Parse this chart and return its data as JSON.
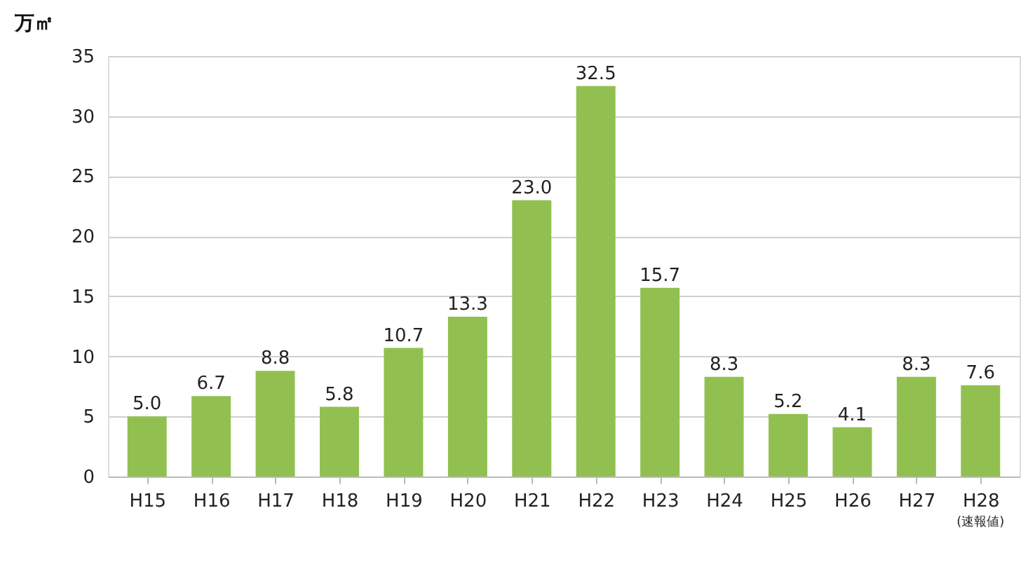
{
  "chart_data": {
    "type": "bar",
    "ylabel": "万㎡",
    "categories": [
      "H15",
      "H16",
      "H17",
      "H18",
      "H19",
      "H20",
      "H21",
      "H22",
      "H23",
      "H24",
      "H25",
      "H26",
      "H27",
      "H28"
    ],
    "values": [
      5.0,
      6.7,
      8.8,
      5.8,
      10.7,
      13.3,
      23.0,
      32.5,
      15.7,
      8.3,
      5.2,
      4.1,
      8.3,
      7.6
    ],
    "value_labels": [
      "5.0",
      "6.7",
      "8.8",
      "5.8",
      "10.7",
      "13.3",
      "23.0",
      "32.5",
      "15.7",
      "8.3",
      "5.2",
      "4.1",
      "8.3",
      "7.6"
    ],
    "color": "#92c050",
    "ylim": [
      0,
      35
    ],
    "yticks": [
      0,
      5,
      10,
      15,
      20,
      25,
      30,
      35
    ],
    "grid": "y",
    "annotations": [
      "(速報値)"
    ]
  }
}
